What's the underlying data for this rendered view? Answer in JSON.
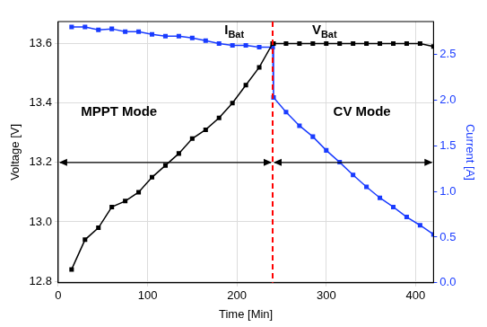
{
  "chart_data": {
    "type": "line",
    "x_label": "Time [Min]",
    "y_label": "Voltage [V]",
    "y2_label": "Current [A]",
    "grid": true,
    "xlim": [
      0,
      420
    ],
    "xticks": [
      0,
      100,
      200,
      300,
      400
    ],
    "ylim": [
      12.795,
      13.674
    ],
    "yticks": [
      12.8,
      {
        "value": 13,
        "label": "13.0"
      },
      13.2,
      13.4,
      13.6
    ],
    "y2lim": [
      0,
      2.86
    ],
    "y2ticks": [
      {
        "value": 0,
        "label": "0.0"
      },
      0.5,
      {
        "value": 1,
        "label": "1.0"
      },
      1.5,
      {
        "value": 2,
        "label": "2.0"
      },
      2.5
    ],
    "x": [
      15,
      30,
      45,
      60,
      75,
      90,
      105,
      120,
      135,
      150,
      165,
      180,
      195,
      210,
      225,
      240,
      241,
      255,
      270,
      285,
      300,
      315,
      330,
      345,
      360,
      375,
      390,
      405,
      420
    ],
    "series": [
      {
        "color": "#000000",
        "marker": "square",
        "line_style": "solid",
        "values": [
          12.84,
          12.94,
          12.98,
          13.05,
          13.07,
          13.1,
          13.15,
          13.19,
          13.23,
          13.28,
          13.31,
          13.35,
          13.4,
          13.46,
          13.52,
          13.6,
          13.6,
          13.6,
          13.6,
          13.6,
          13.6,
          13.6,
          13.6,
          13.6,
          13.6,
          13.6,
          13.6,
          13.6,
          13.59
        ]
      },
      {
        "color": "#1a3cff",
        "marker": "square",
        "line_style": "solid",
        "axis": "y2",
        "values": [
          2.8,
          2.8,
          2.77,
          2.78,
          2.75,
          2.75,
          2.72,
          2.7,
          2.7,
          2.68,
          2.65,
          2.62,
          2.6,
          2.6,
          2.58,
          2.58,
          2.03,
          1.87,
          1.72,
          1.6,
          1.45,
          1.32,
          1.18,
          1.05,
          0.93,
          0.83,
          0.72,
          0.63,
          0.53
        ]
      }
    ],
    "vline": {
      "x": 240,
      "color": "#ff0000",
      "line_style": "dashed"
    },
    "arrows": [
      {
        "x": [
          0,
          240
        ],
        "y": 13.2
      },
      {
        "x": [
          240,
          420
        ],
        "y": 13.2
      }
    ],
    "annotations": [
      {
        "text": "MPPT Mode",
        "x": 68,
        "y": 13.37
      },
      {
        "text": "CV Mode",
        "x": 340,
        "y": 13.37
      },
      {
        "text": "I",
        "subscript": "Bat",
        "x": 197,
        "y": 13.645
      },
      {
        "text": "V",
        "subscript": "Bat",
        "x": 298,
        "y": 13.645
      }
    ]
  }
}
